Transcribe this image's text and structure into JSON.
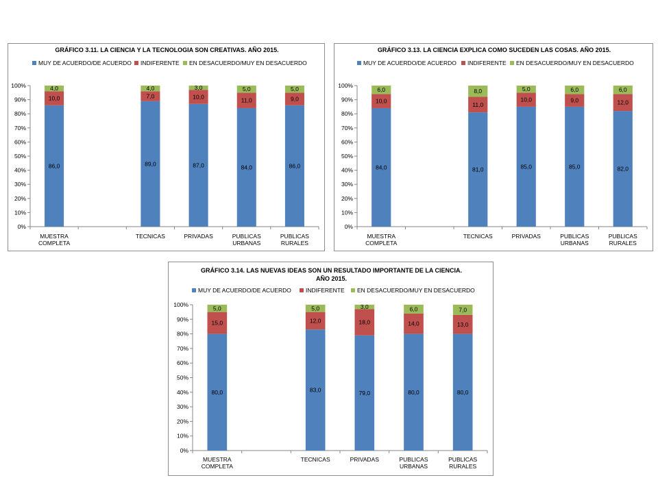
{
  "chart_data": [
    {
      "type": "bar",
      "stacked": true,
      "title": [
        "GRÁFICO 3.11. LA CIENCIA Y LA TECNOLOGIA SON CREATIVAS.  AÑO 2015."
      ],
      "categories": [
        [
          "MUESTRA",
          "COMPLETA"
        ],
        "",
        [
          "TECNICAS"
        ],
        [
          "PRIVADAS"
        ],
        [
          "PUBLICAS",
          "URBANAS"
        ],
        [
          "PUBLICAS",
          "RURALES"
        ]
      ],
      "series": [
        {
          "name": "MUY DE ACUERDO/DE ACUERDO",
          "color": "#4F81BD",
          "values": [
            86,
            null,
            89,
            87,
            84,
            86
          ],
          "labels": [
            "86,0",
            "",
            "89,0",
            "87,0",
            "84,0",
            "86,0"
          ]
        },
        {
          "name": "INDIFERENTE",
          "color": "#C0504D",
          "values": [
            10,
            null,
            7,
            10,
            11,
            9
          ],
          "labels": [
            "10,0",
            "",
            "7,0",
            "10,0",
            "11,0",
            "9,0"
          ]
        },
        {
          "name": "EN DESACUERDO/MUY EN DESACUERDO",
          "color": "#9BBB59",
          "values": [
            4,
            null,
            4,
            3,
            5,
            5
          ],
          "labels": [
            "4,0",
            "",
            "4,0",
            "3,0",
            "5,0",
            "5,0"
          ]
        }
      ],
      "ylim": [
        0,
        100
      ],
      "yticks": [
        "0%",
        "10%",
        "20%",
        "30%",
        "40%",
        "50%",
        "60%",
        "70%",
        "80%",
        "90%",
        "100%"
      ],
      "legend": "top",
      "grid": false
    },
    {
      "type": "bar",
      "stacked": true,
      "title": [
        "GRÁFICO 3.13. LA CIENCIA EXPLICA COMO SUCEDEN LAS COSAS. AÑO 2015."
      ],
      "categories": [
        [
          "MUESTRA",
          "COMPLETA"
        ],
        "",
        [
          "TECNICAS"
        ],
        [
          "PRIVADAS"
        ],
        [
          "PUBLICAS",
          "URBANAS"
        ],
        [
          "PUBLICAS",
          "RURALES"
        ]
      ],
      "series": [
        {
          "name": "MUY DE ACUERDO/DE ACUERDO",
          "color": "#4F81BD",
          "values": [
            84,
            null,
            81,
            85,
            85,
            82
          ],
          "labels": [
            "84,0",
            "",
            "81,0",
            "85,0",
            "85,0",
            "82,0"
          ]
        },
        {
          "name": "INDIFERENTE",
          "color": "#C0504D",
          "values": [
            10,
            null,
            11,
            10,
            9,
            12
          ],
          "labels": [
            "10,0",
            "",
            "11,0",
            "10,0",
            "9,0",
            "12,0"
          ]
        },
        {
          "name": "EN DESACUERDO/MUY EN DESACUERDO",
          "color": "#9BBB59",
          "values": [
            6,
            null,
            8,
            5,
            6,
            6
          ],
          "labels": [
            "6,0",
            "",
            "8,0",
            "5,0",
            "6,0",
            "6,0"
          ]
        }
      ],
      "ylim": [
        0,
        100
      ],
      "yticks": [
        "0%",
        "10%",
        "20%",
        "30%",
        "40%",
        "50%",
        "60%",
        "70%",
        "80%",
        "90%",
        "100%"
      ],
      "legend": "top",
      "grid": false
    },
    {
      "type": "bar",
      "stacked": true,
      "title": [
        "GRÁFICO 3.14. LAS NUEVAS IDEAS SON UN RESULTADO IMPORTANTE DE LA CIENCIA.",
        "AÑO 2015."
      ],
      "categories": [
        [
          "MUESTRA",
          "COMPLETA"
        ],
        "",
        [
          "TECNICAS"
        ],
        [
          "PRIVADAS"
        ],
        [
          "PUBLICAS",
          "URBANAS"
        ],
        [
          "PUBLICAS",
          "RURALES"
        ]
      ],
      "series": [
        {
          "name": "MUY DE ACUERDO/DE ACUERDO",
          "color": "#4F81BD",
          "values": [
            80,
            null,
            83,
            79,
            80,
            80
          ],
          "labels": [
            "80,0",
            "",
            "83,0",
            "79,0",
            "80,0",
            "80,0"
          ]
        },
        {
          "name": "INDIFERENTE",
          "color": "#C0504D",
          "values": [
            15,
            null,
            12,
            18,
            14,
            13
          ],
          "labels": [
            "15,0",
            "",
            "12,0",
            "18,0",
            "14,0",
            "13,0"
          ]
        },
        {
          "name": "EN DESACUERDO/MUY EN DESACUERDO",
          "color": "#9BBB59",
          "values": [
            5,
            null,
            5,
            3,
            6,
            7
          ],
          "labels": [
            "5,0",
            "",
            "5,0",
            "3,0",
            "6,0",
            "7,0"
          ]
        }
      ],
      "ylim": [
        0,
        100
      ],
      "yticks": [
        "0%",
        "10%",
        "20%",
        "30%",
        "40%",
        "50%",
        "60%",
        "70%",
        "80%",
        "90%",
        "100%"
      ],
      "legend": "top",
      "grid": false
    }
  ]
}
